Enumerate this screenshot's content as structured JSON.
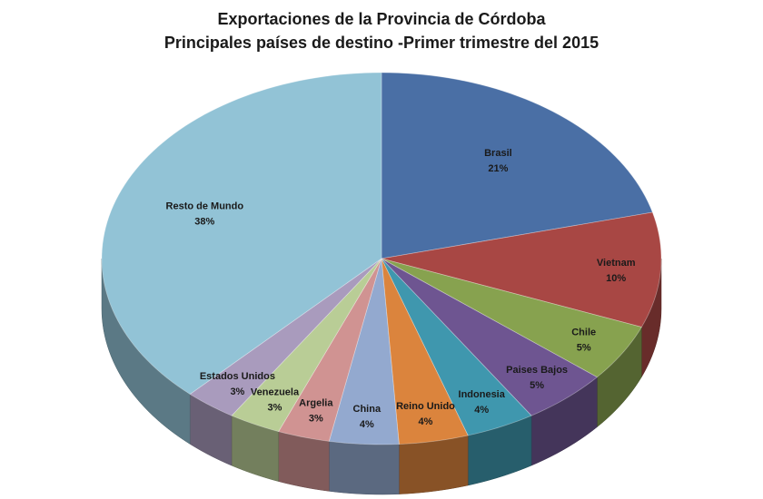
{
  "chart_data": {
    "type": "pie",
    "title": "Exportaciones de la Provincia de Córdoba",
    "subtitle": "Principales países de destino -Primer trimestre del 2015",
    "slices": [
      {
        "label": "Brasil",
        "value": 21,
        "pct_label": "21%",
        "color": "#4a6fa5"
      },
      {
        "label": "Vietnam",
        "value": 10,
        "pct_label": "10%",
        "color": "#a84744"
      },
      {
        "label": "Chile",
        "value": 5,
        "pct_label": "5%",
        "color": "#87a24f"
      },
      {
        "label": "Paises Bajos",
        "value": 5,
        "pct_label": "5%",
        "color": "#6e5591"
      },
      {
        "label": "Indonesia",
        "value": 4,
        "pct_label": "4%",
        "color": "#3f97ae"
      },
      {
        "label": "Reino Unido",
        "value": 4,
        "pct_label": "4%",
        "color": "#db843d"
      },
      {
        "label": "China",
        "value": 4,
        "pct_label": "4%",
        "color": "#93a9cf"
      },
      {
        "label": "Argelia",
        "value": 3,
        "pct_label": "3%",
        "color": "#d09392"
      },
      {
        "label": "Venezuela",
        "value": 3,
        "pct_label": "3%",
        "color": "#b9cd96"
      },
      {
        "label": "Estados Unidos",
        "value": 3,
        "pct_label": "3%",
        "color": "#a99bbd"
      },
      {
        "label": "Resto de Mundo",
        "value": 38,
        "pct_label": "38%",
        "color": "#92c3d6"
      }
    ],
    "legend": "none",
    "start_angle": "12 o'clock, clockwise"
  }
}
